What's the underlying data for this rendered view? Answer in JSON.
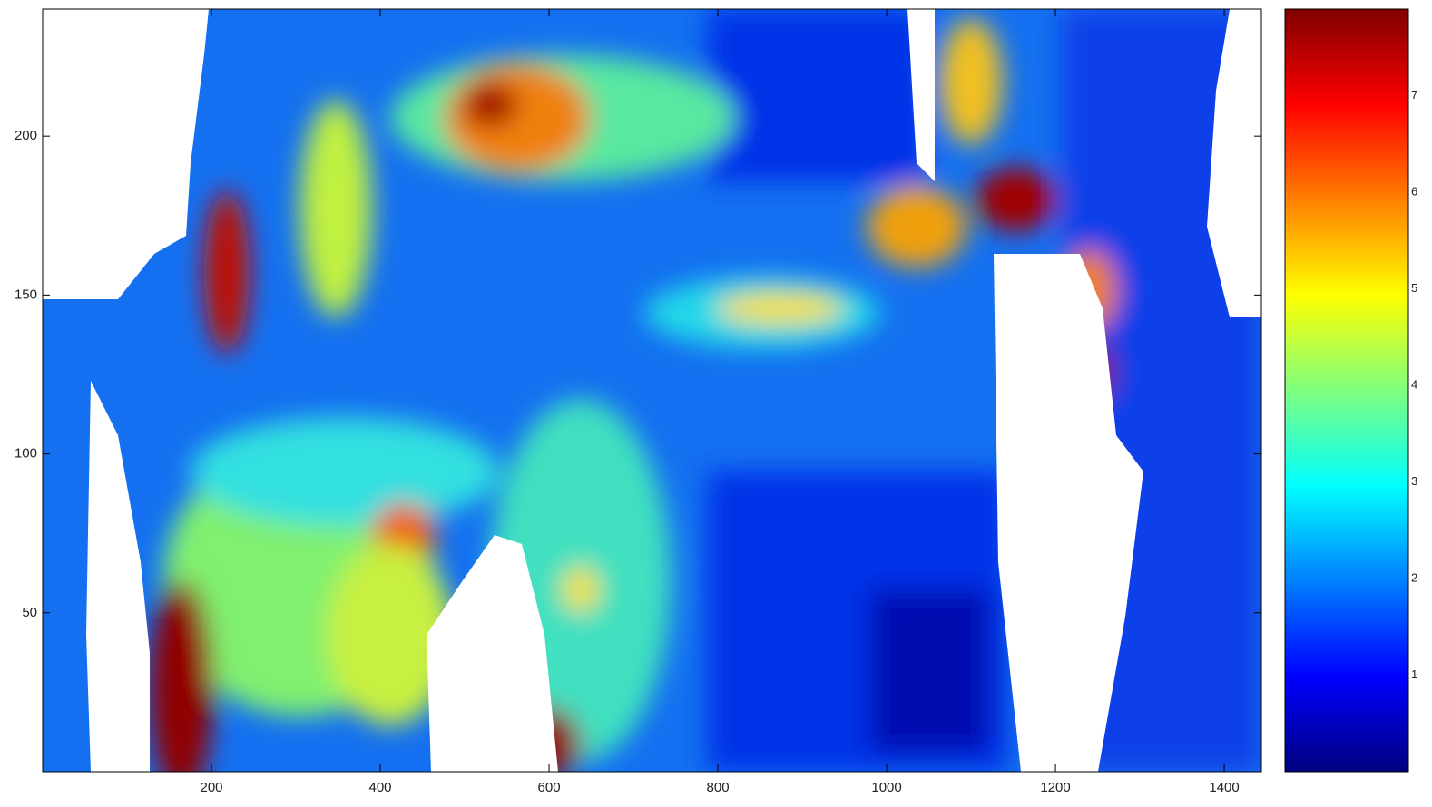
{
  "chart_data": {
    "type": "contour",
    "xlim": [
      0,
      1444
    ],
    "xticks": [
      200,
      400,
      600,
      800,
      1000,
      1200,
      1400
    ],
    "ylim": [
      0,
      240
    ],
    "yticks": [
      50,
      100,
      150,
      200
    ],
    "colorbar": {
      "colormap": "jet",
      "clim": [
        0,
        7.9
      ],
      "ticks": [
        1,
        2,
        3,
        4,
        5,
        6,
        7
      ]
    }
  }
}
